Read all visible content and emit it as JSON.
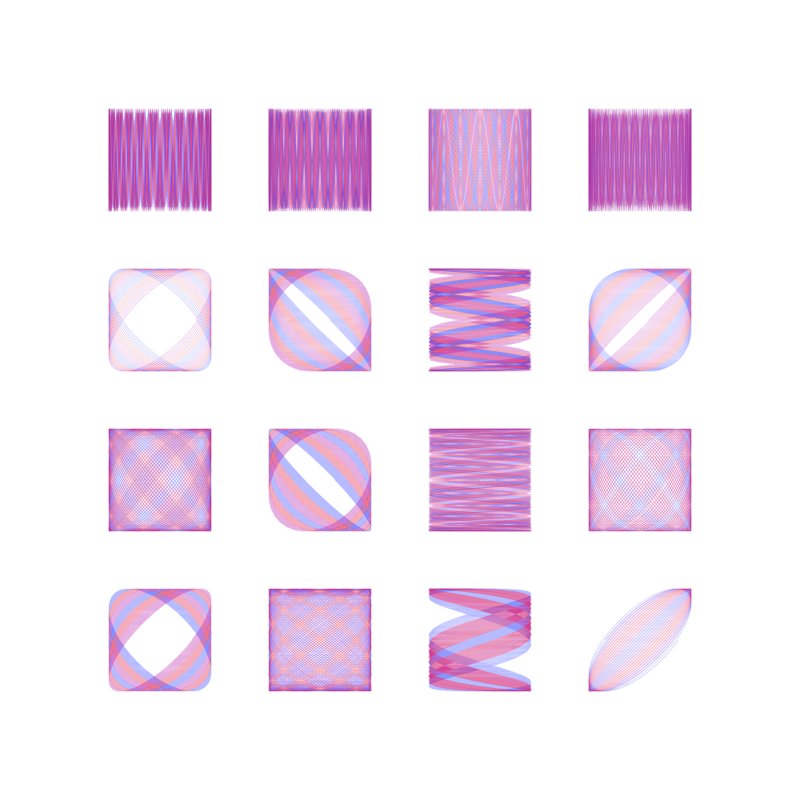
{
  "background": "#ffffff",
  "palette": {
    "color_a": "#2f3cff",
    "color_b": "#e0103c",
    "color_c": "#b81aa8"
  },
  "grid": {
    "rows": 4,
    "cols": 4
  },
  "figures": [
    {
      "a": 1,
      "b": 24.03,
      "delta": 0.3
    },
    {
      "a": 1,
      "b": 20.03,
      "delta": 1.1
    },
    {
      "a": 1,
      "b": 8.02,
      "delta": 0.6
    },
    {
      "a": 1,
      "b": 30.03,
      "delta": 0.9
    },
    {
      "a": 1.01,
      "b": 1,
      "delta": 0.8
    },
    {
      "a": 3.01,
      "b": 3,
      "delta": 0.2
    },
    {
      "a": 12.02,
      "b": 2,
      "delta": 0.5
    },
    {
      "a": 2.01,
      "b": 2,
      "delta": 1.4
    },
    {
      "a": 4.01,
      "b": 5,
      "delta": 0.7
    },
    {
      "a": 5.01,
      "b": 5,
      "delta": 0.3
    },
    {
      "a": 12.02,
      "b": 1,
      "delta": 1.2
    },
    {
      "a": 3.01,
      "b": 4,
      "delta": 1.0
    },
    {
      "a": 4.01,
      "b": 4,
      "delta": 0.9
    },
    {
      "a": 5.01,
      "b": 4,
      "delta": 0.4
    },
    {
      "a": 9.02,
      "b": 3,
      "delta": 1.3
    },
    {
      "a": 1.01,
      "b": 1,
      "delta": 2.3
    }
  ]
}
